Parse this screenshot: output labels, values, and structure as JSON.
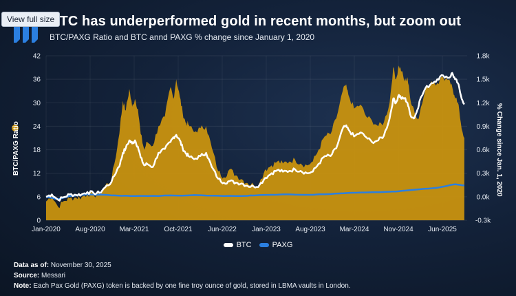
{
  "ui": {
    "view_full_label": "View full size"
  },
  "header": {
    "title": "BTC has underperformed gold in recent months, but zoom out",
    "subtitle": "BTC/PAXG Ratio and BTC annd PAXG % change since January 1, 2020"
  },
  "legend": {
    "btc": "BTC",
    "paxg": "PAXG"
  },
  "footer": {
    "data_label": "Data as of:",
    "data_value": "November 30, 2025",
    "source_label": "Source:",
    "source_value": "Messari",
    "note_label": "Note:",
    "note_value": "Each Pax Gold (PAXG) token is backed by one fine troy ounce of gold, stored in LBMA vaults in London."
  },
  "colors": {
    "ratio_fill": "#c8920f",
    "btc_line": "#ffffff",
    "paxg_line": "#2b7fe0",
    "background": "#0e1a2b"
  },
  "chart_data": {
    "type": "area",
    "title": "BTC has underperformed gold in recent months, but zoom out",
    "subtitle": "BTC/PAXG Ratio and BTC annd PAXG % change since January 1, 2020",
    "ylabel_left": "BTC/PAXG Ratio",
    "ylabel_right": "% Change since Jan. 1, 2020",
    "y_left_ticks": [
      "0",
      "6",
      "12",
      "18",
      "24",
      "30",
      "36",
      "42"
    ],
    "y_left_range": [
      0,
      42
    ],
    "y_right_ticks": [
      "-0.3k",
      "0.0k",
      "0.3k",
      "0.6k",
      "0.9k",
      "1.2k",
      "1.5k",
      "1.8k"
    ],
    "y_right_range": [
      -300,
      1800
    ],
    "x_ticks": [
      "Jan-2020",
      "Aug-2020",
      "Mar-2021",
      "Oct-2021",
      "Jun-2022",
      "Jan-2023",
      "Aug-2023",
      "Mar-2024",
      "Nov-2024",
      "Jun-2025"
    ],
    "x_range": [
      2020.0,
      2025.92
    ],
    "series": [
      {
        "name": "BTC/PAXG Ratio",
        "axis": "left",
        "style": "area",
        "points": [
          [
            2020.0,
            4.8
          ],
          [
            2020.08,
            6.3
          ],
          [
            2020.17,
            3.4
          ],
          [
            2020.25,
            4.9
          ],
          [
            2020.33,
            5.6
          ],
          [
            2020.42,
            5.8
          ],
          [
            2020.5,
            5.9
          ],
          [
            2020.58,
            6.7
          ],
          [
            2020.67,
            6.4
          ],
          [
            2020.75,
            6.5
          ],
          [
            2020.83,
            8.8
          ],
          [
            2020.92,
            10.5
          ],
          [
            2021.0,
            18.5
          ],
          [
            2021.04,
            24.0
          ],
          [
            2021.08,
            30.5
          ],
          [
            2021.12,
            28.0
          ],
          [
            2021.17,
            33.5
          ],
          [
            2021.21,
            29.0
          ],
          [
            2021.25,
            31.0
          ],
          [
            2021.29,
            28.5
          ],
          [
            2021.33,
            22.0
          ],
          [
            2021.38,
            18.0
          ],
          [
            2021.42,
            20.0
          ],
          [
            2021.5,
            19.0
          ],
          [
            2021.58,
            24.0
          ],
          [
            2021.67,
            26.5
          ],
          [
            2021.75,
            34.0
          ],
          [
            2021.79,
            31.0
          ],
          [
            2021.83,
            36.0
          ],
          [
            2021.88,
            31.5
          ],
          [
            2021.92,
            27.5
          ],
          [
            2021.96,
            25.0
          ],
          [
            2022.0,
            24.5
          ],
          [
            2022.08,
            22.5
          ],
          [
            2022.17,
            23.5
          ],
          [
            2022.25,
            24.0
          ],
          [
            2022.33,
            18.5
          ],
          [
            2022.42,
            12.5
          ],
          [
            2022.5,
            11.0
          ],
          [
            2022.58,
            13.0
          ],
          [
            2022.67,
            11.5
          ],
          [
            2022.75,
            10.5
          ],
          [
            2022.83,
            9.5
          ],
          [
            2022.92,
            9.0
          ],
          [
            2023.0,
            9.5
          ],
          [
            2023.08,
            13.0
          ],
          [
            2023.17,
            14.0
          ],
          [
            2023.25,
            15.0
          ],
          [
            2023.33,
            14.5
          ],
          [
            2023.42,
            15.0
          ],
          [
            2023.5,
            15.5
          ],
          [
            2023.58,
            14.5
          ],
          [
            2023.67,
            14.0
          ],
          [
            2023.75,
            15.0
          ],
          [
            2023.83,
            18.0
          ],
          [
            2023.92,
            21.5
          ],
          [
            2024.0,
            22.0
          ],
          [
            2024.08,
            26.0
          ],
          [
            2024.17,
            33.0
          ],
          [
            2024.21,
            34.5
          ],
          [
            2024.25,
            32.0
          ],
          [
            2024.33,
            28.5
          ],
          [
            2024.42,
            29.5
          ],
          [
            2024.5,
            26.5
          ],
          [
            2024.58,
            25.5
          ],
          [
            2024.67,
            24.0
          ],
          [
            2024.75,
            25.0
          ],
          [
            2024.83,
            30.0
          ],
          [
            2024.88,
            39.0
          ],
          [
            2024.92,
            36.0
          ],
          [
            2024.96,
            39.5
          ],
          [
            2025.0,
            38.0
          ],
          [
            2025.04,
            35.5
          ],
          [
            2025.08,
            36.5
          ],
          [
            2025.12,
            31.0
          ],
          [
            2025.17,
            28.5
          ],
          [
            2025.21,
            26.0
          ],
          [
            2025.25,
            27.0
          ],
          [
            2025.33,
            33.0
          ],
          [
            2025.42,
            35.5
          ],
          [
            2025.5,
            35.0
          ],
          [
            2025.58,
            36.5
          ],
          [
            2025.67,
            36.0
          ],
          [
            2025.71,
            34.0
          ],
          [
            2025.75,
            31.0
          ],
          [
            2025.79,
            30.0
          ],
          [
            2025.83,
            25.0
          ],
          [
            2025.88,
            21.0
          ]
        ]
      },
      {
        "name": "BTC",
        "axis": "right",
        "style": "line",
        "points": [
          [
            2020.0,
            0
          ],
          [
            2020.08,
            30
          ],
          [
            2020.17,
            -40
          ],
          [
            2020.25,
            -5
          ],
          [
            2020.33,
            30
          ],
          [
            2020.42,
            25
          ],
          [
            2020.5,
            30
          ],
          [
            2020.58,
            60
          ],
          [
            2020.67,
            45
          ],
          [
            2020.75,
            50
          ],
          [
            2020.83,
            120
          ],
          [
            2020.92,
            190
          ],
          [
            2021.0,
            350
          ],
          [
            2021.04,
            420
          ],
          [
            2021.08,
            560
          ],
          [
            2021.12,
            620
          ],
          [
            2021.17,
            720
          ],
          [
            2021.21,
            680
          ],
          [
            2021.25,
            720
          ],
          [
            2021.29,
            640
          ],
          [
            2021.33,
            500
          ],
          [
            2021.38,
            400
          ],
          [
            2021.42,
            420
          ],
          [
            2021.5,
            380
          ],
          [
            2021.58,
            560
          ],
          [
            2021.67,
            610
          ],
          [
            2021.75,
            700
          ],
          [
            2021.79,
            760
          ],
          [
            2021.83,
            790
          ],
          [
            2021.88,
            720
          ],
          [
            2021.92,
            620
          ],
          [
            2021.96,
            560
          ],
          [
            2022.0,
            520
          ],
          [
            2022.08,
            480
          ],
          [
            2022.17,
            520
          ],
          [
            2022.25,
            560
          ],
          [
            2022.33,
            380
          ],
          [
            2022.42,
            230
          ],
          [
            2022.5,
            180
          ],
          [
            2022.58,
            200
          ],
          [
            2022.67,
            180
          ],
          [
            2022.75,
            170
          ],
          [
            2022.83,
            140
          ],
          [
            2022.92,
            130
          ],
          [
            2023.0,
            150
          ],
          [
            2023.08,
            240
          ],
          [
            2023.17,
            300
          ],
          [
            2023.25,
            340
          ],
          [
            2023.33,
            320
          ],
          [
            2023.42,
            330
          ],
          [
            2023.5,
            350
          ],
          [
            2023.58,
            330
          ],
          [
            2023.67,
            300
          ],
          [
            2023.75,
            320
          ],
          [
            2023.83,
            420
          ],
          [
            2023.92,
            520
          ],
          [
            2024.0,
            520
          ],
          [
            2024.08,
            620
          ],
          [
            2024.17,
            870
          ],
          [
            2024.21,
            900
          ],
          [
            2024.25,
            860
          ],
          [
            2024.33,
            770
          ],
          [
            2024.42,
            820
          ],
          [
            2024.5,
            760
          ],
          [
            2024.58,
            700
          ],
          [
            2024.67,
            720
          ],
          [
            2024.75,
            780
          ],
          [
            2024.83,
            1000
          ],
          [
            2024.88,
            1250
          ],
          [
            2024.92,
            1200
          ],
          [
            2024.96,
            1300
          ],
          [
            2025.0,
            1250
          ],
          [
            2025.04,
            1260
          ],
          [
            2025.08,
            1200
          ],
          [
            2025.12,
            1050
          ],
          [
            2025.17,
            1000
          ],
          [
            2025.21,
            1080
          ],
          [
            2025.25,
            1220
          ],
          [
            2025.33,
            1380
          ],
          [
            2025.42,
            1450
          ],
          [
            2025.5,
            1500
          ],
          [
            2025.58,
            1550
          ],
          [
            2025.67,
            1520
          ],
          [
            2025.71,
            1580
          ],
          [
            2025.75,
            1500
          ],
          [
            2025.79,
            1450
          ],
          [
            2025.83,
            1300
          ],
          [
            2025.88,
            1180
          ]
        ]
      },
      {
        "name": "PAXG",
        "axis": "right",
        "style": "line",
        "points": [
          [
            2020.0,
            0
          ],
          [
            2020.17,
            -30
          ],
          [
            2020.33,
            10
          ],
          [
            2020.58,
            30
          ],
          [
            2020.83,
            25
          ],
          [
            2021.0,
            15
          ],
          [
            2021.25,
            10
          ],
          [
            2021.5,
            12
          ],
          [
            2021.83,
            15
          ],
          [
            2022.17,
            20
          ],
          [
            2022.5,
            10
          ],
          [
            2022.83,
            12
          ],
          [
            2023.0,
            22
          ],
          [
            2023.33,
            30
          ],
          [
            2023.67,
            25
          ],
          [
            2024.0,
            35
          ],
          [
            2024.25,
            50
          ],
          [
            2024.5,
            55
          ],
          [
            2024.83,
            65
          ],
          [
            2025.0,
            75
          ],
          [
            2025.25,
            95
          ],
          [
            2025.5,
            115
          ],
          [
            2025.75,
            160
          ],
          [
            2025.88,
            145
          ]
        ]
      }
    ]
  }
}
